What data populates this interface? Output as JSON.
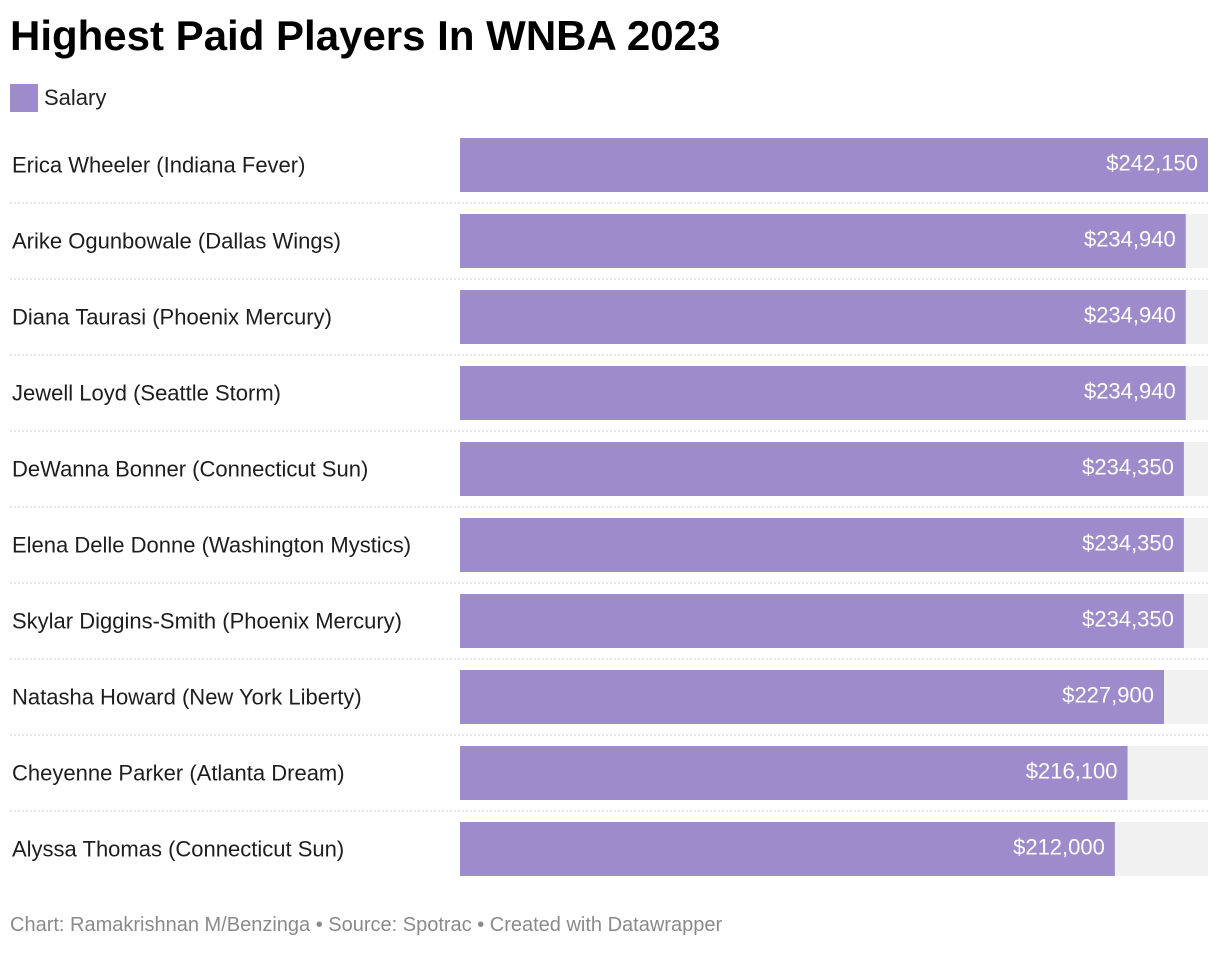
{
  "chart_data": {
    "type": "bar",
    "orientation": "horizontal",
    "title": "Highest Paid Players In WNBA 2023",
    "legend": {
      "placement": "top-left",
      "items": [
        {
          "label": "Salary",
          "color": "#9e8bcb"
        }
      ]
    },
    "categories": [
      "Erica Wheeler (Indiana Fever)",
      "Arike Ogunbowale (Dallas Wings)",
      "Diana Taurasi (Phoenix Mercury)",
      "Jewell Loyd (Seattle Storm)",
      "DeWanna Bonner (Connecticut Sun)",
      "Elena Delle Donne (Washington Mystics)",
      "Skylar Diggins-Smith (Phoenix Mercury)",
      "Natasha Howard (New York Liberty)",
      "Cheyenne Parker (Atlanta Dream)",
      "Alyssa Thomas (Connecticut Sun)"
    ],
    "series": [
      {
        "name": "Salary",
        "values": [
          242150,
          234940,
          234940,
          234940,
          234350,
          234350,
          234350,
          227900,
          216100,
          212000
        ],
        "labels": [
          "$242,150",
          "$234,940",
          "$234,940",
          "$234,940",
          "$234,350",
          "$234,350",
          "$234,350",
          "$227,900",
          "$216,100",
          "$212,000"
        ]
      }
    ],
    "xlim": [
      0,
      242150
    ],
    "grid": false
  },
  "footer": "Chart: Ramakrishnan M/Benzinga • Source: Spotrac • Created with Datawrapper",
  "colors": {
    "bar": "#9e8bcb",
    "track": "#f1f1f1",
    "separator": "#cfcfcf",
    "bar_label": "#ffffff"
  }
}
